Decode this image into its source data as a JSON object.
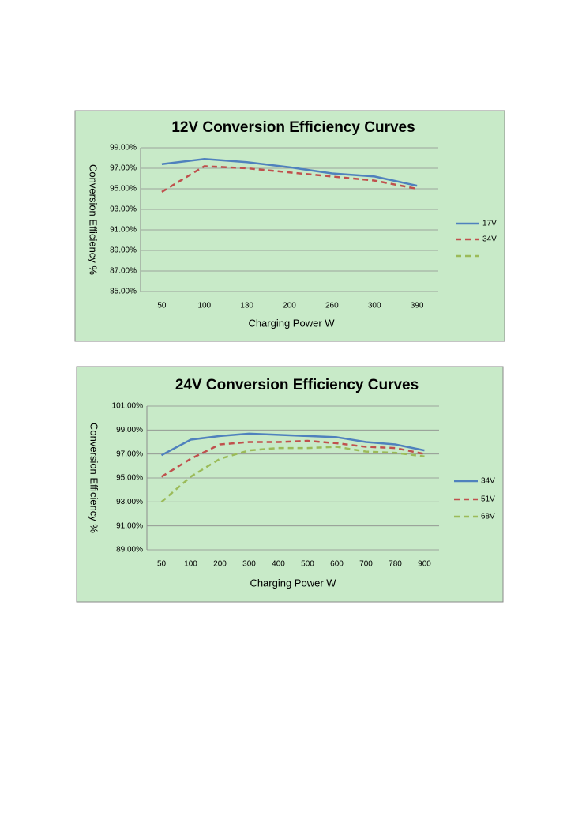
{
  "chart_data": [
    {
      "type": "line",
      "title": "12V Conversion Efficiency Curves",
      "y_label": "Conversion Efficiency %",
      "x_label": "Charging Power W",
      "categories": [
        "50",
        "100",
        "130",
        "200",
        "260",
        "300",
        "390"
      ],
      "series": [
        {
          "name": "17V",
          "color": "#4f81bd",
          "dash": "solid",
          "values": [
            97.4,
            97.9,
            97.6,
            97.1,
            96.5,
            96.2,
            95.3
          ]
        },
        {
          "name": "34V",
          "color": "#c0504d",
          "dash": "dashed",
          "values": [
            94.7,
            97.2,
            97.0,
            96.6,
            96.2,
            95.8,
            95.0
          ]
        },
        {
          "name": null,
          "color": "#9bbb59",
          "dash": "dashed",
          "values": [
            null,
            null,
            null,
            null,
            null,
            null,
            null
          ]
        }
      ],
      "ylim": [
        85,
        99
      ],
      "yticks": [
        {
          "value": 85,
          "label": "85.00%"
        },
        {
          "value": 87,
          "label": "87.00%"
        },
        {
          "value": 89,
          "label": "89.00%"
        },
        {
          "value": 91,
          "label": "91.00%"
        },
        {
          "value": 93,
          "label": "93.00%"
        },
        {
          "value": 95,
          "label": "95.00%"
        },
        {
          "value": 97,
          "label": "97.00%"
        },
        {
          "value": 99,
          "label": "99.00%"
        }
      ],
      "grid": true,
      "legend": "right"
    },
    {
      "type": "line",
      "title": "24V Conversion Efficiency Curves",
      "y_label": "Conversion Efficiency %",
      "x_label": "Charging Power W",
      "categories": [
        "50",
        "100",
        "200",
        "300",
        "400",
        "500",
        "600",
        "700",
        "780",
        "900"
      ],
      "series": [
        {
          "name": "34V",
          "color": "#4f81bd",
          "dash": "solid",
          "values": [
            96.9,
            98.2,
            98.5,
            98.7,
            98.6,
            98.5,
            98.4,
            98.0,
            97.8,
            97.3
          ]
        },
        {
          "name": "51V",
          "color": "#c0504d",
          "dash": "dashed",
          "values": [
            95.1,
            96.6,
            97.8,
            98.0,
            98.0,
            98.1,
            97.9,
            97.6,
            97.5,
            97.0
          ]
        },
        {
          "name": "68V",
          "color": "#9bbb59",
          "dash": "dashed",
          "values": [
            93.0,
            95.1,
            96.6,
            97.3,
            97.5,
            97.5,
            97.6,
            97.2,
            97.1,
            96.8
          ]
        }
      ],
      "ylim": [
        89,
        101
      ],
      "yticks": [
        {
          "value": 89,
          "label": "89.00%"
        },
        {
          "value": 91,
          "label": "91.00%"
        },
        {
          "value": 93,
          "label": "93.00%"
        },
        {
          "value": 95,
          "label": "95.00%"
        },
        {
          "value": 97,
          "label": "97.00%"
        },
        {
          "value": 99,
          "label": "99.00%"
        },
        {
          "value": 101,
          "label": "101.00%"
        }
      ],
      "grid": true,
      "legend": "right"
    }
  ]
}
